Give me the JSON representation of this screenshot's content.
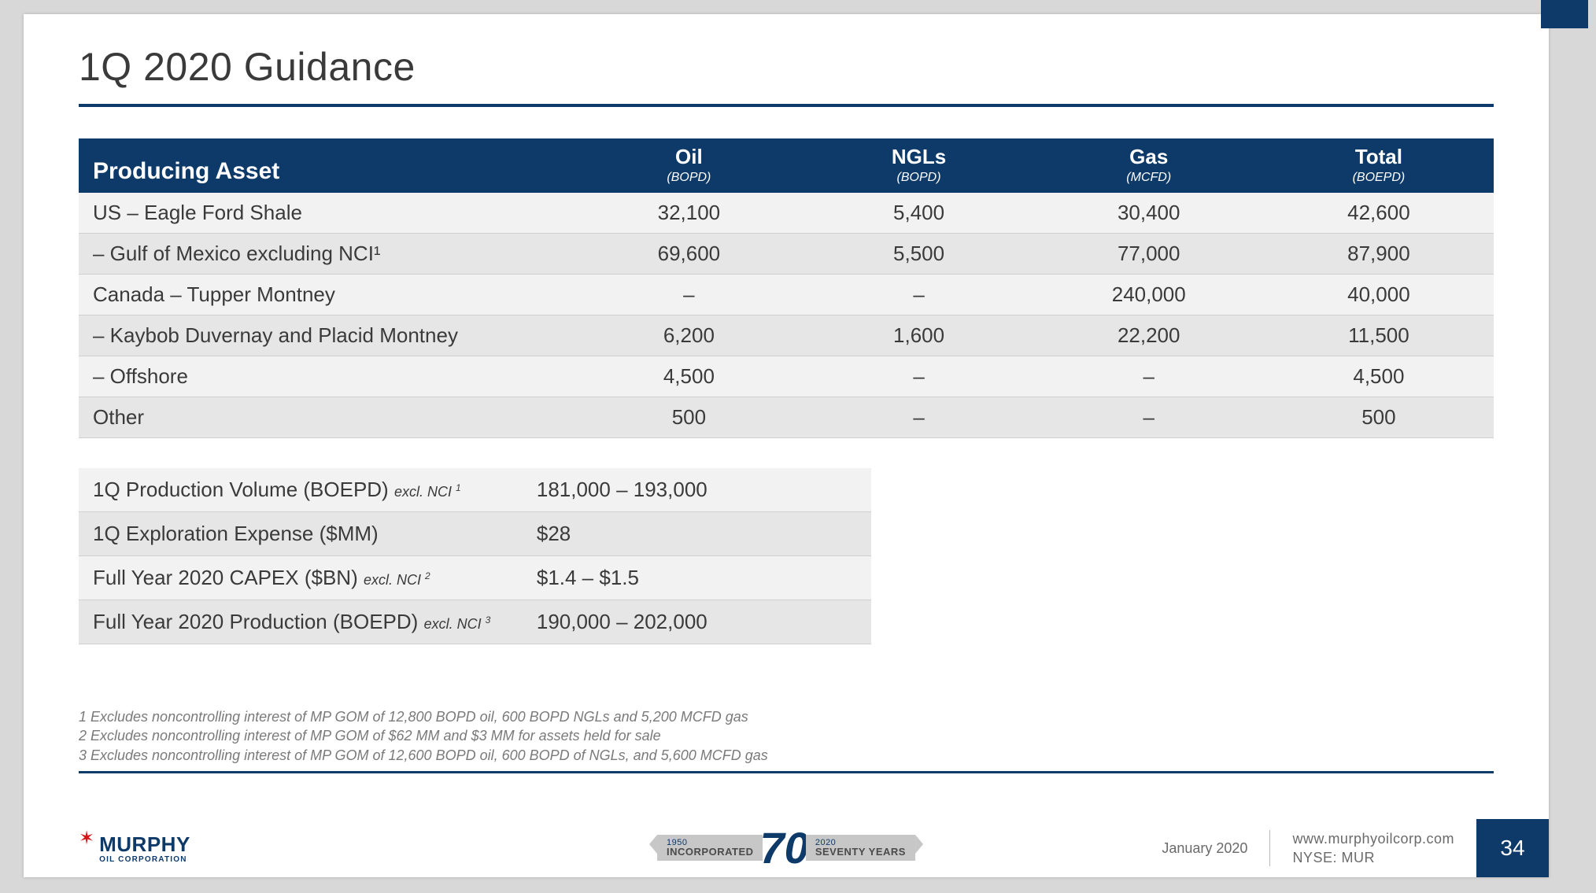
{
  "colors": {
    "page_bg": "#d8d8d8",
    "slide_bg": "#ffffff",
    "brand_navy": "#0e3a6a",
    "brand_red": "#d4161b",
    "header_text": "#ffffff",
    "body_text": "#3a3a3a",
    "row_odd": "#f2f2f2",
    "row_even": "#e6e6e6",
    "row_border": "#d0d0d0",
    "footnote_text": "#7a7a7a",
    "ribbon_bg": "#c7c7c7"
  },
  "slide": {
    "title": "1Q 2020 Guidance",
    "page_number": "34"
  },
  "main_table": {
    "header_asset": "Producing Asset",
    "columns": [
      {
        "label": "Oil",
        "unit": "(BOPD)"
      },
      {
        "label": "NGLs",
        "unit": "(BOPD)"
      },
      {
        "label": "Gas",
        "unit": "(MCFD)"
      },
      {
        "label": "Total",
        "unit": "(BOEPD)"
      }
    ],
    "rows": [
      {
        "asset": "US – Eagle Ford Shale",
        "oil": "32,100",
        "ngls": "5,400",
        "gas": "30,400",
        "total": "42,600"
      },
      {
        "asset": "– Gulf of Mexico excluding NCI¹",
        "oil": "69,600",
        "ngls": "5,500",
        "gas": "77,000",
        "total": "87,900"
      },
      {
        "asset": "Canada – Tupper Montney",
        "oil": "–",
        "ngls": "–",
        "gas": "240,000",
        "total": "40,000"
      },
      {
        "asset": "– Kaybob Duvernay and Placid Montney",
        "oil": "6,200",
        "ngls": "1,600",
        "gas": "22,200",
        "total": "11,500"
      },
      {
        "asset": "– Offshore",
        "oil": "4,500",
        "ngls": "–",
        "gas": "–",
        "total": "4,500"
      },
      {
        "asset": "Other",
        "oil": "500",
        "ngls": "–",
        "gas": "–",
        "total": "500"
      }
    ]
  },
  "summary_table": {
    "rows": [
      {
        "label": "1Q Production Volume (BOEPD)",
        "note": "excl. NCI",
        "sup": "1",
        "value": "181,000 – 193,000"
      },
      {
        "label": "1Q Exploration Expense ($MM)",
        "note": "",
        "sup": "",
        "value": "$28"
      },
      {
        "label": "Full Year 2020 CAPEX ($BN)",
        "note": "excl. NCI",
        "sup": "2",
        "value": "$1.4 –  $1.5"
      },
      {
        "label": "Full Year 2020 Production (BOEPD)",
        "note": "excl. NCI",
        "sup": "3",
        "value": "190,000 – 202,000"
      }
    ]
  },
  "footnotes": [
    "1 Excludes noncontrolling interest of MP GOM of 12,800 BOPD oil, 600 BOPD NGLs and 5,200 MCFD gas",
    "2 Excludes noncontrolling interest of MP GOM of $62 MM and $3 MM for assets held for sale",
    "3 Excludes noncontrolling interest of MP GOM of 12,600 BOPD oil, 600 BOPD of NGLs, and 5,600 MCFD gas"
  ],
  "footer": {
    "brand_name": "MURPHY",
    "brand_sub": "OIL CORPORATION",
    "anniv_left_year": "1950",
    "anniv_left_label": "INCORPORATED",
    "anniv_number": "70",
    "anniv_right_year": "2020",
    "anniv_right_label": "SEVENTY YEARS",
    "date": "January 2020",
    "url": "www.murphyoilcorp.com",
    "ticker": "NYSE: MUR"
  }
}
